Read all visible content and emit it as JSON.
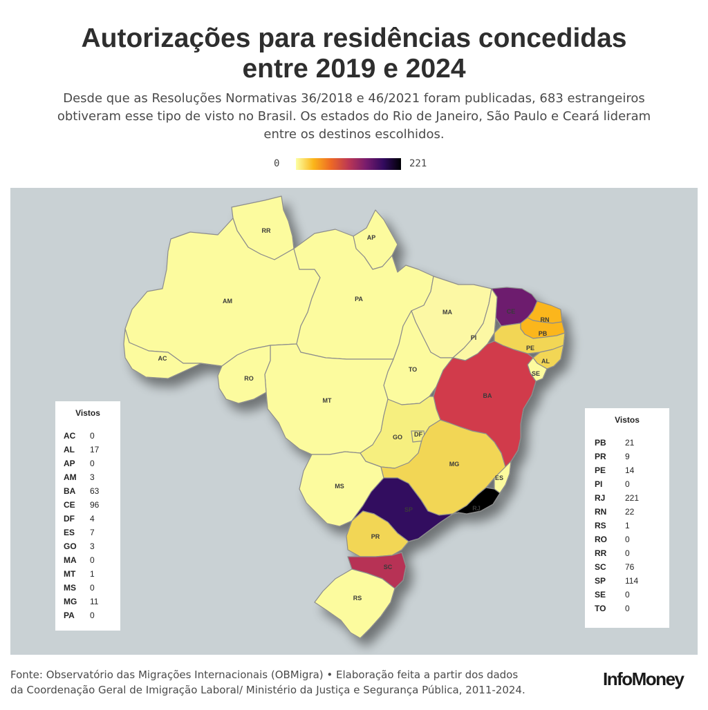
{
  "title_line1": "Autorizações para residências concedidas",
  "title_line2": "entre 2019 e 2024",
  "subtitle_line1": "Desde que as Resoluções Normativas 36/2018 e 46/2021 foram publicadas, 683 estrangeiros",
  "subtitle_line2": "obtiveram esse tipo de visto no Brasil. Os estados do Rio de Janeiro, São Paulo e Ceará lideram",
  "subtitle_line3": "entre os destinos escolhidos.",
  "legend": {
    "min": "0",
    "max": "221"
  },
  "table_header": "Vistos",
  "table_left": [
    {
      "uf": "AC",
      "value": "0"
    },
    {
      "uf": "AL",
      "value": "17"
    },
    {
      "uf": "AP",
      "value": "0"
    },
    {
      "uf": "AM",
      "value": "3"
    },
    {
      "uf": "BA",
      "value": "63"
    },
    {
      "uf": "CE",
      "value": "96"
    },
    {
      "uf": "DF",
      "value": "4"
    },
    {
      "uf": "ES",
      "value": "7"
    },
    {
      "uf": "GO",
      "value": "3"
    },
    {
      "uf": "MA",
      "value": "0"
    },
    {
      "uf": "MT",
      "value": "1"
    },
    {
      "uf": "MS",
      "value": "0"
    },
    {
      "uf": "MG",
      "value": "11"
    },
    {
      "uf": "PA",
      "value": "0"
    }
  ],
  "table_right": [
    {
      "uf": "PB",
      "value": "21"
    },
    {
      "uf": "PR",
      "value": "9"
    },
    {
      "uf": "PE",
      "value": "14"
    },
    {
      "uf": "PI",
      "value": "0"
    },
    {
      "uf": "RJ",
      "value": "221"
    },
    {
      "uf": "RN",
      "value": "22"
    },
    {
      "uf": "RS",
      "value": "1"
    },
    {
      "uf": "RO",
      "value": "0"
    },
    {
      "uf": "RR",
      "value": "0"
    },
    {
      "uf": "SC",
      "value": "76"
    },
    {
      "uf": "SP",
      "value": "114"
    },
    {
      "uf": "SE",
      "value": "0"
    },
    {
      "uf": "TO",
      "value": "0"
    }
  ],
  "colors": {
    "zero": "#fcfb9e",
    "low": "#f6ef7f",
    "ma_pi": "#fcf8a4",
    "mid_low": "#f2d654",
    "orange": "#fbb61a",
    "ba": "#d13b4b",
    "sc": "#b73354",
    "ce": "#6d1a6e",
    "sp": "#330a5f",
    "rj": "#000004",
    "border": "#8c8c8c",
    "ocean": "#c9d1d4"
  },
  "footer_line1": "Fonte: Observatório das Migrações Internacionais (OBMigra) • Elaboração feita a partir dos dados",
  "footer_line2": "da Coordenação Geral de Imigração Laboral/ Ministério da Justiça e Segurança Pública, 2011-2024.",
  "brand": "InfoMoney"
}
